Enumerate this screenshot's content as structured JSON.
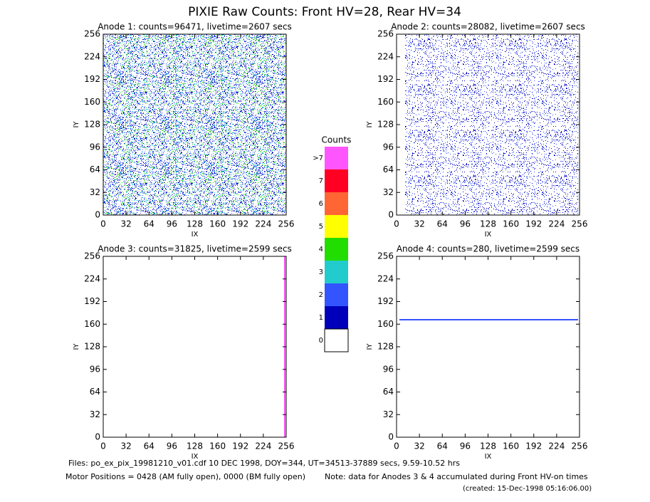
{
  "title": "PIXIE Raw Counts:  Front HV=28, Rear HV=34",
  "chart_data": [
    {
      "type": "heatmap",
      "title": "Anode 1: counts=96471, livetime=2607 secs",
      "xlabel": "IX",
      "ylabel": "IY",
      "xlim": [
        0,
        256
      ],
      "ylim": [
        0,
        256
      ],
      "xticks": [
        0,
        32,
        64,
        96,
        128,
        160,
        192,
        224,
        256
      ],
      "yticks": [
        0,
        32,
        64,
        96,
        128,
        160,
        192,
        224,
        256
      ]
    },
    {
      "type": "heatmap",
      "title": "Anode 2: counts=28082, livetime=2607 secs",
      "xlabel": "IX",
      "ylabel": "IY",
      "xlim": [
        0,
        256
      ],
      "ylim": [
        0,
        256
      ],
      "xticks": [
        0,
        32,
        64,
        96,
        128,
        160,
        192,
        224,
        256
      ],
      "yticks": [
        0,
        32,
        64,
        96,
        128,
        160,
        192,
        224,
        256
      ]
    },
    {
      "type": "heatmap",
      "title": "Anode 3: counts=31825, livetime=2599 secs",
      "xlabel": "IX",
      "ylabel": "IY",
      "xlim": [
        0,
        256
      ],
      "ylim": [
        0,
        256
      ],
      "xticks": [
        0,
        32,
        64,
        96,
        128,
        160,
        192,
        224,
        256
      ],
      "yticks": [
        0,
        32,
        64,
        96,
        128,
        160,
        192,
        224,
        256
      ]
    },
    {
      "type": "heatmap",
      "title": "Anode 4: counts=280, livetime=2599 secs",
      "xlabel": "IX",
      "ylabel": "IY",
      "xlim": [
        0,
        256
      ],
      "ylim": [
        0,
        256
      ],
      "xticks": [
        0,
        32,
        64,
        96,
        128,
        160,
        192,
        224,
        256
      ],
      "yticks": [
        0,
        32,
        64,
        96,
        128,
        160,
        192,
        224,
        256
      ]
    }
  ],
  "colorbar": {
    "title": "Counts",
    "labels": [
      ">7",
      "7",
      "6",
      "5",
      "4",
      "3",
      "2",
      "1",
      "0"
    ],
    "colors": [
      "#ff55ff",
      "#ff0022",
      "#ff6633",
      "#ffff00",
      "#22dd00",
      "#22cccc",
      "#3355ff",
      "#0000bb",
      "#ffffff"
    ]
  },
  "footer": {
    "files": "Files: po_ex_pix_19981210_v01.cdf    10 DEC 1998, DOY=344, UT=34513-37889 secs,  9.59-10.52 hrs",
    "motor": "Motor Positions = 0428 (AM fully open), 0000 (BM fully open)",
    "note": "Note: data for Anodes 3 & 4 accumulated during Front HV-on times",
    "created": "(created: 15-Dec-1998 05:16:06.00)"
  }
}
